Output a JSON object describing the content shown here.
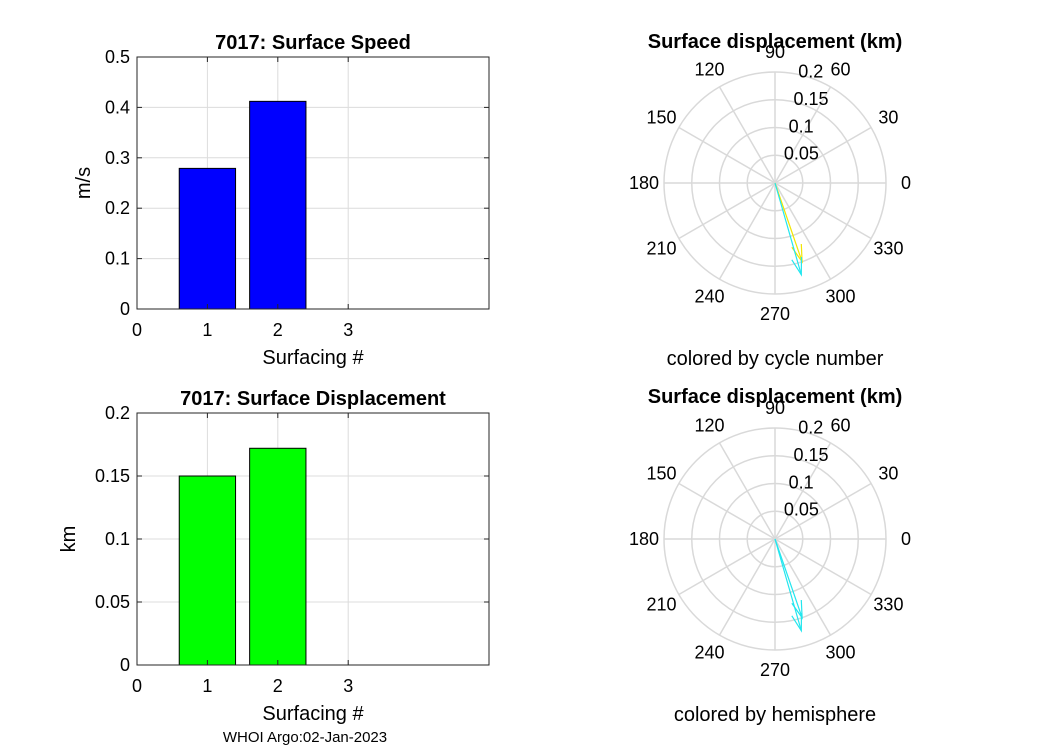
{
  "footer": "WHOI Argo:02-Jan-2023",
  "chart_data": [
    {
      "type": "bar",
      "title": "7017: Surface Speed",
      "xlabel": "Surfacing #",
      "ylabel": "m/s",
      "x": [
        1,
        2
      ],
      "values": [
        0.279,
        0.412
      ],
      "xlim": [
        0,
        5
      ],
      "ylim": [
        0,
        0.5
      ],
      "xticks": [
        0,
        1,
        2,
        3
      ],
      "yticks": [
        0,
        0.1,
        0.2,
        0.3,
        0.4,
        0.5
      ],
      "xtick_labels": [
        "0",
        "1",
        "2",
        "3"
      ],
      "ytick_labels": [
        "0",
        "0.1",
        "0.2",
        "0.3",
        "0.4",
        "0.5"
      ],
      "bar_color": "#0000ff",
      "grid": true
    },
    {
      "type": "polar-compass",
      "title": "Surface displacement (km)",
      "caption": "colored by cycle number",
      "rmax": 0.2,
      "rticks": [
        0.05,
        0.1,
        0.15,
        0.2
      ],
      "rtick_labels": [
        "0.05",
        "0.1",
        "0.15",
        "0.2"
      ],
      "theta_ticks": [
        0,
        30,
        60,
        90,
        120,
        150,
        180,
        210,
        240,
        270,
        300,
        330
      ],
      "theta_labels": [
        "0",
        "30",
        "60",
        "90",
        "120",
        "150",
        "180",
        "210",
        "240",
        "270",
        "300",
        "330"
      ],
      "vectors": [
        {
          "angle_deg": 289,
          "magnitude": 0.15,
          "color": "#f2e600"
        },
        {
          "angle_deg": 286,
          "magnitude": 0.172,
          "color": "#22e6ee"
        }
      ]
    },
    {
      "type": "bar",
      "title": "7017: Surface Displacement",
      "xlabel": "Surfacing #",
      "ylabel": "km",
      "x": [
        1,
        2
      ],
      "values": [
        0.15,
        0.172
      ],
      "xlim": [
        0,
        5
      ],
      "ylim": [
        0,
        0.2
      ],
      "xticks": [
        0,
        1,
        2,
        3
      ],
      "yticks": [
        0,
        0.05,
        0.1,
        0.15,
        0.2
      ],
      "xtick_labels": [
        "0",
        "1",
        "2",
        "3"
      ],
      "ytick_labels": [
        "0",
        "0.05",
        "0.1",
        "0.15",
        "0.2"
      ],
      "bar_color": "#00ff00",
      "grid": true
    },
    {
      "type": "polar-compass",
      "title": "Surface displacement (km)",
      "caption": "colored by hemisphere",
      "rmax": 0.2,
      "rticks": [
        0.05,
        0.1,
        0.15,
        0.2
      ],
      "rtick_labels": [
        "0.05",
        "0.1",
        "0.15",
        "0.2"
      ],
      "theta_ticks": [
        0,
        30,
        60,
        90,
        120,
        150,
        180,
        210,
        240,
        270,
        300,
        330
      ],
      "theta_labels": [
        "0",
        "30",
        "60",
        "90",
        "120",
        "150",
        "180",
        "210",
        "240",
        "270",
        "300",
        "330"
      ],
      "vectors": [
        {
          "angle_deg": 289,
          "magnitude": 0.15,
          "color": "#22e6ee"
        },
        {
          "angle_deg": 286,
          "magnitude": 0.172,
          "color": "#22e6ee"
        }
      ]
    }
  ]
}
